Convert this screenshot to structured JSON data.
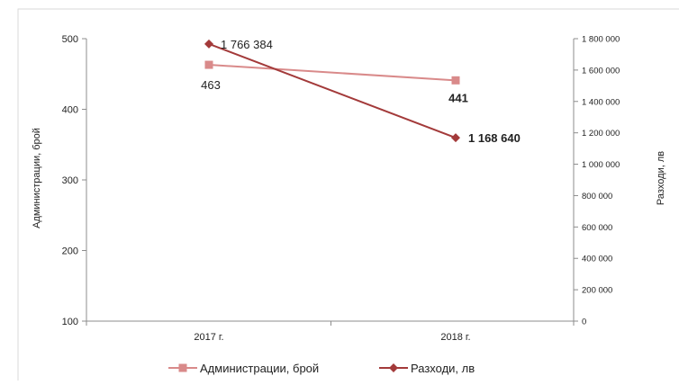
{
  "colors": {
    "series1": "#d98a8a",
    "series2": "#a33a3a",
    "axis": "#8c8c8c",
    "text": "#222222",
    "border": "#d9d9d9"
  },
  "chart_data": {
    "type": "line",
    "categories": [
      "2017 г.",
      "2018 г."
    ],
    "y_left": {
      "label": "Администрации, брой",
      "lim": [
        100,
        500
      ],
      "ticks": [
        "100",
        "200",
        "300",
        "400",
        "500"
      ]
    },
    "y_right": {
      "label": "Разходи, лв",
      "lim": [
        0,
        1800000
      ],
      "ticks": [
        "0",
        "200 000",
        "400 000",
        "600 000",
        "800 000",
        "1 000 000",
        "1 200 000",
        "1 400 000",
        "1 600 000",
        "1 800 000"
      ]
    },
    "series": [
      {
        "name": "Администрации, брой",
        "axis": "left",
        "marker": "square",
        "values": [
          463,
          441
        ],
        "labels": [
          "463",
          "441"
        ],
        "label_bold": [
          false,
          true
        ]
      },
      {
        "name": "Разходи, лв",
        "axis": "right",
        "marker": "diamond",
        "values": [
          1766384,
          1168640
        ],
        "labels": [
          "1 766 384",
          "1 168 640"
        ],
        "label_bold": [
          false,
          true
        ]
      }
    ],
    "grid": false,
    "legend_position": "bottom"
  }
}
